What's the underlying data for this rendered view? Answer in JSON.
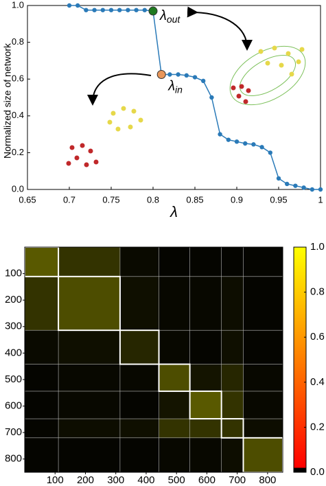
{
  "chart_data": [
    {
      "type": "line",
      "ylabel": "Normalized size of network",
      "xlabel": "λ",
      "x": [
        0.7,
        0.71,
        0.72,
        0.73,
        0.74,
        0.75,
        0.76,
        0.77,
        0.78,
        0.79,
        0.8,
        0.81,
        0.82,
        0.83,
        0.84,
        0.85,
        0.86,
        0.87,
        0.88,
        0.89,
        0.9,
        0.91,
        0.92,
        0.93,
        0.94,
        0.95,
        0.96,
        0.97,
        0.98,
        0.99,
        1.0
      ],
      "values": [
        1.0,
        1.0,
        0.975,
        0.975,
        0.975,
        0.975,
        0.975,
        0.975,
        0.975,
        0.975,
        0.97,
        0.625,
        0.625,
        0.625,
        0.62,
        0.61,
        0.59,
        0.5,
        0.3,
        0.27,
        0.26,
        0.25,
        0.245,
        0.23,
        0.2,
        0.06,
        0.03,
        0.02,
        0.01,
        0.0,
        0.0
      ],
      "color": "#2a7ab8",
      "xlim": [
        0.65,
        1
      ],
      "ylim": [
        0,
        1
      ],
      "xticks": [
        0.65,
        0.7,
        0.75,
        0.8,
        0.85,
        0.9,
        0.95,
        1
      ],
      "yticks": [
        {
          "value": 0,
          "label": "0.0"
        },
        0.2,
        0.4,
        0.6,
        0.8,
        {
          "value": 1,
          "label": "1.0"
        }
      ],
      "annotations": [
        {
          "text": "λ",
          "subscript": "out",
          "x": 0.8,
          "y": 0.97,
          "color": "#1f7a1f"
        },
        {
          "text": "λ",
          "subscript": "in",
          "x": 0.81,
          "y": 0.625,
          "color": "#e8965a"
        }
      ]
    },
    {
      "type": "heatmap",
      "bins": [
        0,
        111,
        314,
        442,
        544,
        648,
        720,
        850
      ],
      "values": [
        [
          0.35,
          0.2,
          0.04,
          0.02,
          0.02,
          0.02,
          0.02
        ],
        [
          0.2,
          0.3,
          0.06,
          0.03,
          0.03,
          0.05,
          0.02
        ],
        [
          0.04,
          0.06,
          0.15,
          0.03,
          0.02,
          0.06,
          0.02
        ],
        [
          0.02,
          0.03,
          0.03,
          0.3,
          0.08,
          0.15,
          0.03
        ],
        [
          0.02,
          0.03,
          0.02,
          0.08,
          0.35,
          0.2,
          0.03
        ],
        [
          0.02,
          0.05,
          0.06,
          0.2,
          0.2,
          0.2,
          0.05
        ],
        [
          0.02,
          0.02,
          0.02,
          0.03,
          0.03,
          0.05,
          0.3
        ]
      ],
      "xlim": [
        0,
        850
      ],
      "ylim": [
        0,
        850
      ],
      "y_inverted": true,
      "xticks": [
        100,
        200,
        300,
        400,
        500,
        600,
        700,
        800
      ],
      "yticks": [
        100,
        200,
        300,
        400,
        500,
        600,
        700,
        800
      ],
      "colorbar": {
        "lim": [
          0,
          1
        ],
        "ticks": [
          {
            "value": 0,
            "label": "0.0"
          },
          0.2,
          0.4,
          0.6,
          0.8,
          {
            "value": 1,
            "label": "1.0"
          }
        ],
        "under_color": "#000000",
        "colors": [
          "#ff0000",
          "#ff8000",
          "#ffff00"
        ]
      }
    }
  ]
}
